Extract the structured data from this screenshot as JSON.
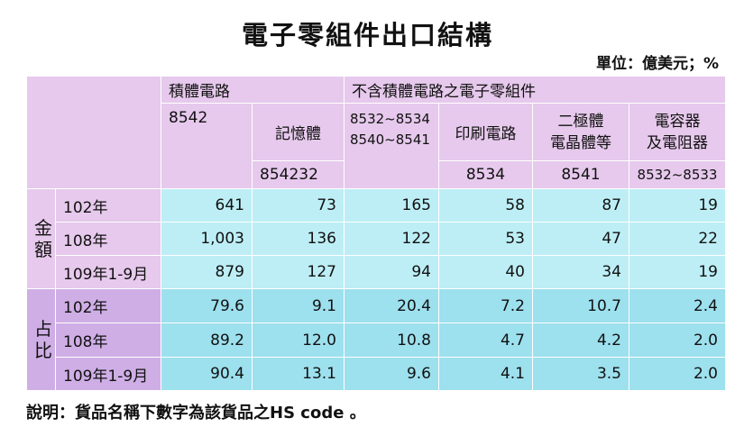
{
  "title": "電子零組件出口結構",
  "unit": "單位：億美元；%",
  "header": {
    "ic": "積體電路",
    "ic_code": "8542",
    "memory": "記憶體",
    "memory_code": "854232",
    "non_ic": "不含積體電路之電子零組件",
    "non_ic_code_1": "8532~8534",
    "non_ic_code_2": "8540~8541",
    "pcb": "印刷電路",
    "pcb_code": "8534",
    "diode_1": "二極體",
    "diode_2": "電晶體等",
    "diode_code": "8541",
    "cap_1": "電容器",
    "cap_2": "及電阻器",
    "cap_code": "8532~8533"
  },
  "groups": {
    "amount_1": "金",
    "amount_2": "額",
    "share_1": "占",
    "share_2": "比"
  },
  "amount_rows": [
    {
      "year": "102年",
      "v": [
        "641",
        "73",
        "165",
        "58",
        "87",
        "19"
      ]
    },
    {
      "year": "108年",
      "v": [
        "1,003",
        "136",
        "122",
        "53",
        "47",
        "22"
      ]
    },
    {
      "year": "109年1-9月",
      "v": [
        "879",
        "127",
        "94",
        "40",
        "34",
        "19"
      ]
    }
  ],
  "share_rows": [
    {
      "year": "102年",
      "v": [
        "79.6",
        "9.1",
        "20.4",
        "7.2",
        "10.7",
        "2.4"
      ]
    },
    {
      "year": "108年",
      "v": [
        "89.2",
        "12.0",
        "10.8",
        "4.7",
        "4.2",
        "2.0"
      ]
    },
    {
      "year": "109年1-9月",
      "v": [
        "90.4",
        "13.1",
        "9.6",
        "4.1",
        "3.5",
        "2.0"
      ]
    }
  ],
  "note": "說明：貨品名稱下數字為該貨品之HS code 。"
}
